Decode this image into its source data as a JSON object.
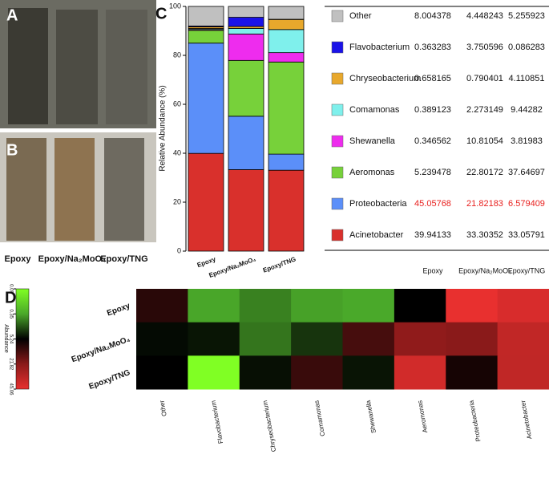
{
  "labels": {
    "panels": [
      "A",
      "B",
      "C",
      "D"
    ]
  },
  "chart_data": [
    {
      "type": "bar",
      "stacked": true,
      "categories": [
        "Epoxy",
        "Epoxy/Na₂MoO₄",
        "Epoxy/TNG"
      ],
      "y_label": "Relative Abundance (%)",
      "ylim": [
        0,
        100
      ],
      "yticks": [
        0,
        20,
        40,
        60,
        80,
        100
      ],
      "series": [
        {
          "name": "Acinetobacter",
          "color": "#d9302c",
          "values": [
            39.94133,
            33.30352,
            33.05791
          ]
        },
        {
          "name": "Proteobacteria",
          "color": "#5b8ff9",
          "label_color": "#e8201e",
          "values": [
            45.05768,
            21.82183,
            6.579409
          ]
        },
        {
          "name": "Aeromonas",
          "color": "#77d13a",
          "values": [
            5.239478,
            22.80172,
            37.64697
          ]
        },
        {
          "name": "Shewanella",
          "color": "#ee2cee",
          "values": [
            0.346562,
            10.81054,
            3.81983
          ]
        },
        {
          "name": "Comamonas",
          "color": "#7ff0ec",
          "values": [
            0.389123,
            2.273149,
            9.44282
          ]
        },
        {
          "name": "Chryseobacterium",
          "color": "#e8a82c",
          "values": [
            0.658165,
            0.790401,
            4.110851
          ]
        },
        {
          "name": "Flavobacterium",
          "color": "#1a12e8",
          "values": [
            0.363283,
            3.750596,
            0.086283
          ]
        },
        {
          "name": "Other",
          "color": "#c0c0c0",
          "values": [
            8.004378,
            4.448243,
            5.255923
          ]
        }
      ]
    },
    {
      "type": "heatmap",
      "legend_title": "Abundance",
      "colorbar_ticks": [
        0.09,
        0.35,
        5.24,
        21.82,
        45.06
      ],
      "colorbar_colors": [
        "#80ff24",
        "#4aa82a",
        "#000000",
        "#8a1a1a",
        "#e8302f"
      ]
    }
  ]
}
